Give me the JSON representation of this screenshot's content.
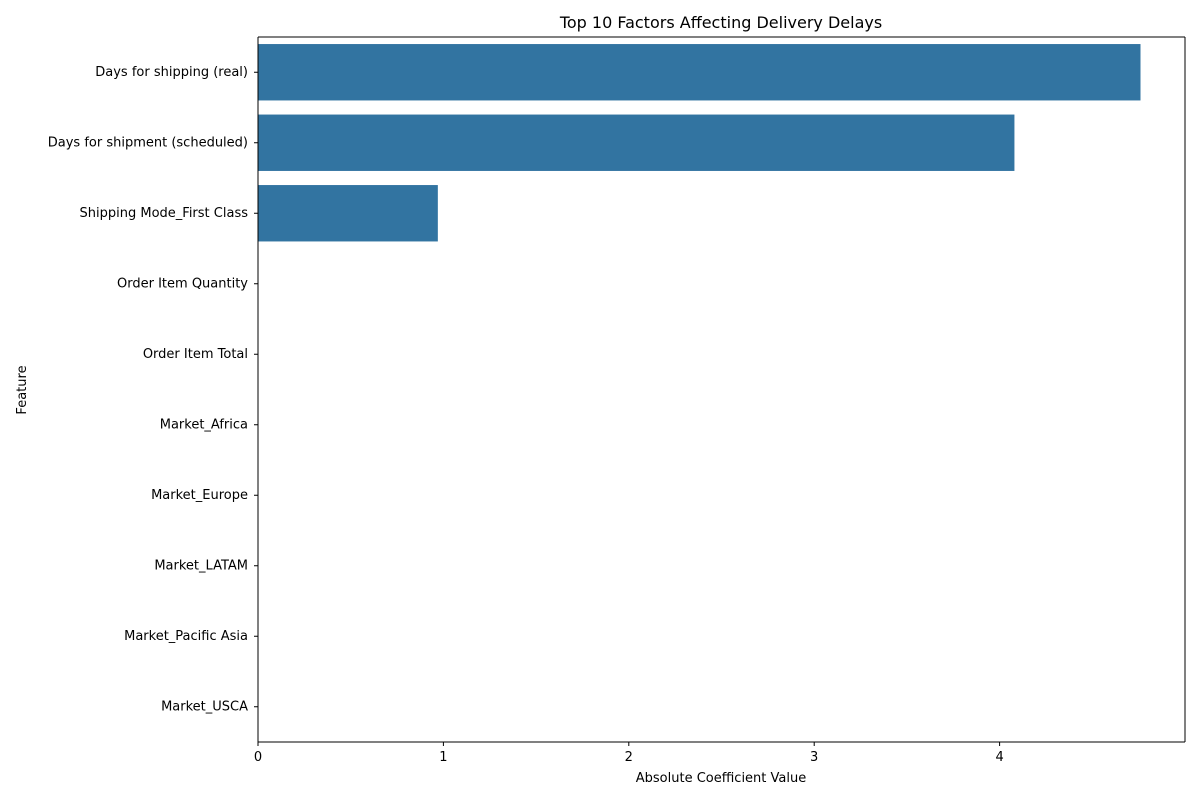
{
  "chart_data": {
    "type": "bar",
    "orientation": "horizontal",
    "title": "Top 10 Factors Affecting Delivery Delays",
    "xlabel": "Absolute Coefficient Value",
    "ylabel": "Feature",
    "categories": [
      "Days for shipping (real)",
      "Days for shipment (scheduled)",
      "Shipping Mode_First Class",
      "Order Item Quantity",
      "Order Item Total",
      "Market_Africa",
      "Market_Europe",
      "Market_LATAM",
      "Market_Pacific Asia",
      "Market_USCA"
    ],
    "values": [
      4.76,
      4.08,
      0.97,
      0,
      0,
      0,
      0,
      0,
      0,
      0
    ],
    "xlim": [
      0,
      5.0
    ],
    "xticks": [
      0,
      1,
      2,
      3,
      4
    ],
    "bar_color": "#3274a1",
    "grid": false,
    "legend": "none"
  }
}
